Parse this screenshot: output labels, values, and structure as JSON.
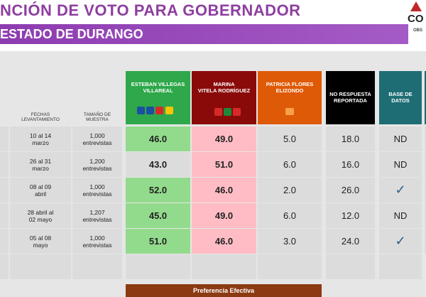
{
  "header": {
    "title": "NCIÓN DE VOTO PARA GOBERNADOR",
    "subtitle": "ESTADO DE DURANGO",
    "logo": "CO",
    "logo_sub": "OBS"
  },
  "table": {
    "columns": {
      "dates": "FECHAS\nLEVANTAMIENTO",
      "sample": "TAMAÑO DE\nMUESTRA",
      "candidates": [
        "ESTEBAN VILLEGAS\nVILLAREAL",
        "MARINA\nVITELA RODRÍGUEZ",
        "PATRICIA FLORES\nELIZONDO"
      ],
      "no_answer": "NO RESPUESTA\nREPORTADA",
      "database": "BASE DE\nDATOS"
    },
    "rows": [
      [
        "10 al 14\nmarzo",
        "1,000\nentrevistas",
        "46.0",
        "49.0",
        "5.0",
        "18.0",
        "ND"
      ],
      [
        "26 al 31\nmarzo",
        "1,200\nentrevistas",
        "43.0",
        "51.0",
        "6.0",
        "16.0",
        "ND"
      ],
      [
        "08 al 09\nabril",
        "1,000\nentrevistas",
        "52.0",
        "46.0",
        "2.0",
        "26.0",
        "✓"
      ],
      [
        "28 abril al\n02 mayo",
        "1,207\nentrevistas",
        "45.0",
        "49.0",
        "6.0",
        "12.0",
        "ND"
      ],
      [
        "05 al 08\nmayo",
        "1,000\nentrevistas",
        "51.0",
        "46.0",
        "3.0",
        "24.0",
        "✓"
      ]
    ],
    "footer": "Preferencia Efectiva"
  }
}
